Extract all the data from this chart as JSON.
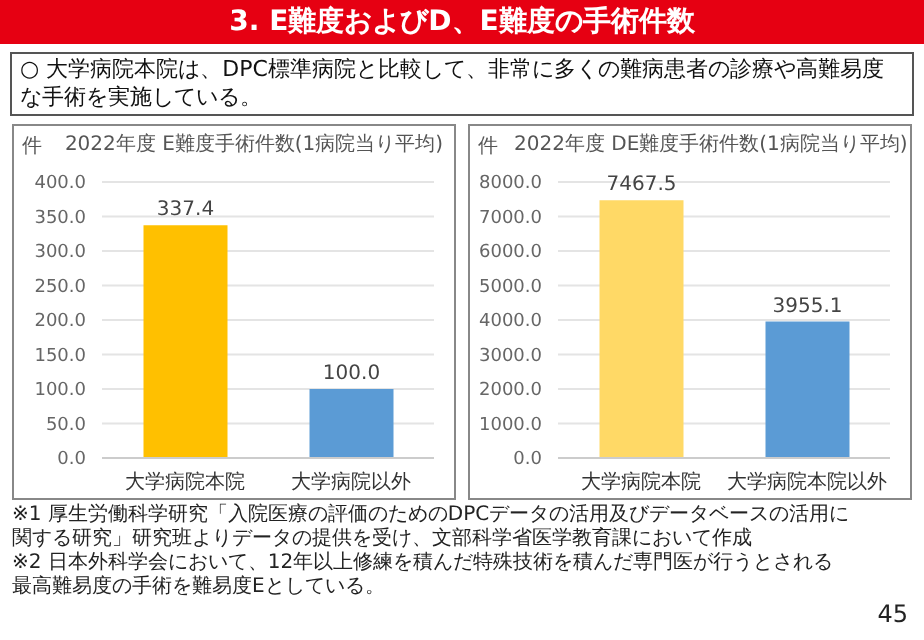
{
  "chart_data": [
    {
      "type": "bar",
      "title": "2022年度 E難度手術件数(1病院当り平均)",
      "ylabel": "件",
      "categories": [
        "大学病院本院",
        "大学病院以外"
      ],
      "values": [
        337.4,
        100.0
      ],
      "colors": [
        "#ffc000",
        "#5b9bd5"
      ],
      "value_labels": [
        "337.4",
        "100.0"
      ],
      "ylim": [
        0,
        400
      ],
      "yticks": [
        {
          "value": 0,
          "label": "0.0"
        },
        {
          "value": 50,
          "label": "50.0"
        },
        {
          "value": 100,
          "label": "100.0"
        },
        {
          "value": 150,
          "label": "150.0"
        },
        {
          "value": 200,
          "label": "200.0"
        },
        {
          "value": 250,
          "label": "250.0"
        },
        {
          "value": 300,
          "label": "300.0"
        },
        {
          "value": 350,
          "label": "350.0"
        },
        {
          "value": 400,
          "label": "400.0"
        }
      ],
      "grid": "y",
      "annotations": [
        "3. E難度およびD、E難度の手術件数",
        "○ 大学病院本院は、DPC標準病院と比較して、非常に多くの難病患者の診療や高難易度な手術を実施している。"
      ]
    },
    {
      "type": "bar",
      "title": "2022年度 DE難度手術件数(1病院当り平均)",
      "ylabel": "件",
      "categories": [
        "大学病院本院",
        "大学病院本院以外"
      ],
      "values": [
        7467.5,
        3955.1
      ],
      "colors": [
        "#ffd966",
        "#5b9bd5"
      ],
      "value_labels": [
        "7467.5",
        "3955.1"
      ],
      "ylim": [
        0,
        8000
      ],
      "yticks": [
        {
          "value": 0,
          "label": "0.0"
        },
        {
          "value": 1000,
          "label": "1000.0"
        },
        {
          "value": 2000,
          "label": "2000.0"
        },
        {
          "value": 3000,
          "label": "3000.0"
        },
        {
          "value": 4000,
          "label": "4000.0"
        },
        {
          "value": 5000,
          "label": "5000.0"
        },
        {
          "value": 6000,
          "label": "6000.0"
        },
        {
          "value": 7000,
          "label": "7000.0"
        },
        {
          "value": 8000,
          "label": "8000.0"
        }
      ],
      "grid": "y",
      "annotations": [
        "※1 厚生労働科学研究「入院医療の評価のためのDPCデータの活用及びデータベースの活用に関する研究」研究班よりデータの提供を受け、文部科学省医学教育課において作成",
        "※2 日本外科学会において、12年以上修練を積んだ特殊技術を積んだ専門医が行うとされる最高難易度の手術を難易度Eとしている。",
        "45"
      ]
    }
  ]
}
